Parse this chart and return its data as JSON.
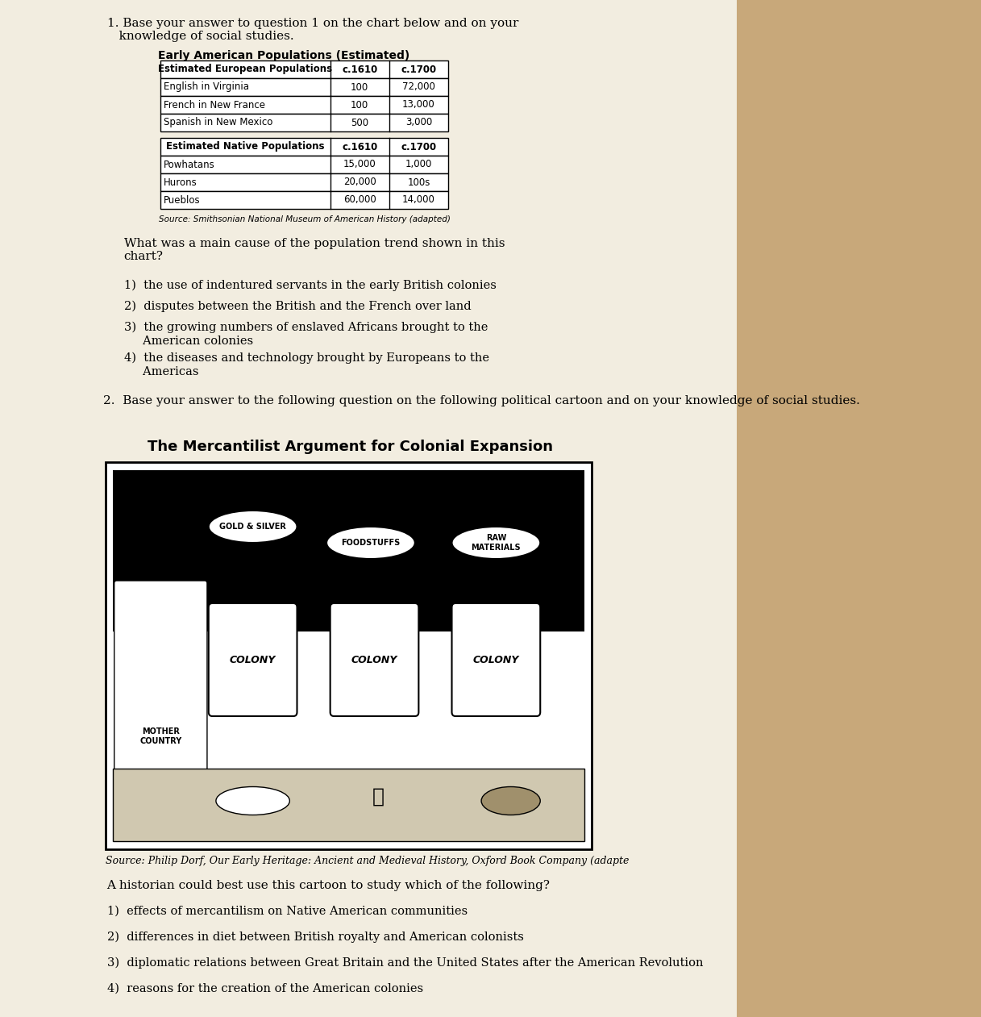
{
  "bg_color": "#e8dfc8",
  "paper_color": "#f5f0e8",
  "title_q1": "1. Base your answer to question 1 on the chart below and on your\n   knowledge of social studies.",
  "chart_title": "Early American Populations (Estimated)",
  "table_header_euro": "Estimated European Populations",
  "table_col1": "c.1610",
  "table_col2": "c.1700",
  "euro_rows": [
    [
      "English in Virginia",
      "100",
      "72,000"
    ],
    [
      "French in New France",
      "100",
      "13,000"
    ],
    [
      "Spanish in New Mexico",
      "500",
      "3,000"
    ]
  ],
  "table_header_native": "Estimated Native Populations",
  "native_rows": [
    [
      "Powhatans",
      "15,000",
      "1,000"
    ],
    [
      "Hurons",
      "20,000",
      "100s"
    ],
    [
      "Pueblos",
      "60,000",
      "14,000"
    ]
  ],
  "source_chart": "Source: Smithsonian National Museum of American History (adapted)",
  "question1": "What was a main cause of the population trend shown in this\nchart?",
  "answers1": [
    "1)  the use of indentured servants in the early British colonies",
    "2)  disputes between the British and the French over land",
    "3)  the growing numbers of enslaved Africans brought to the\n     American colonies",
    "4)  the diseases and technology brought by Europeans to the\n     Americas"
  ],
  "title_q2": "2.  Base your answer to the following question on the following political cartoon and on your knowledge of social studies.",
  "cartoon_title": "The Mercantilist Argument for Colonial Expansion",
  "source_cartoon": "Source: Philip Dorf, Our Early Heritage: Ancient and Medieval History, Oxford Book Company (adapte",
  "question2": "A historian could best use this cartoon to study which of the following?",
  "answers2": [
    "1)  effects of mercantilism on Native American communities",
    "2)  differences in diet between British royalty and American colonists",
    "3)  diplomatic relations between Great Britain and the United States after the American Revolution",
    "4)  reasons for the creation of the American colonies"
  ]
}
